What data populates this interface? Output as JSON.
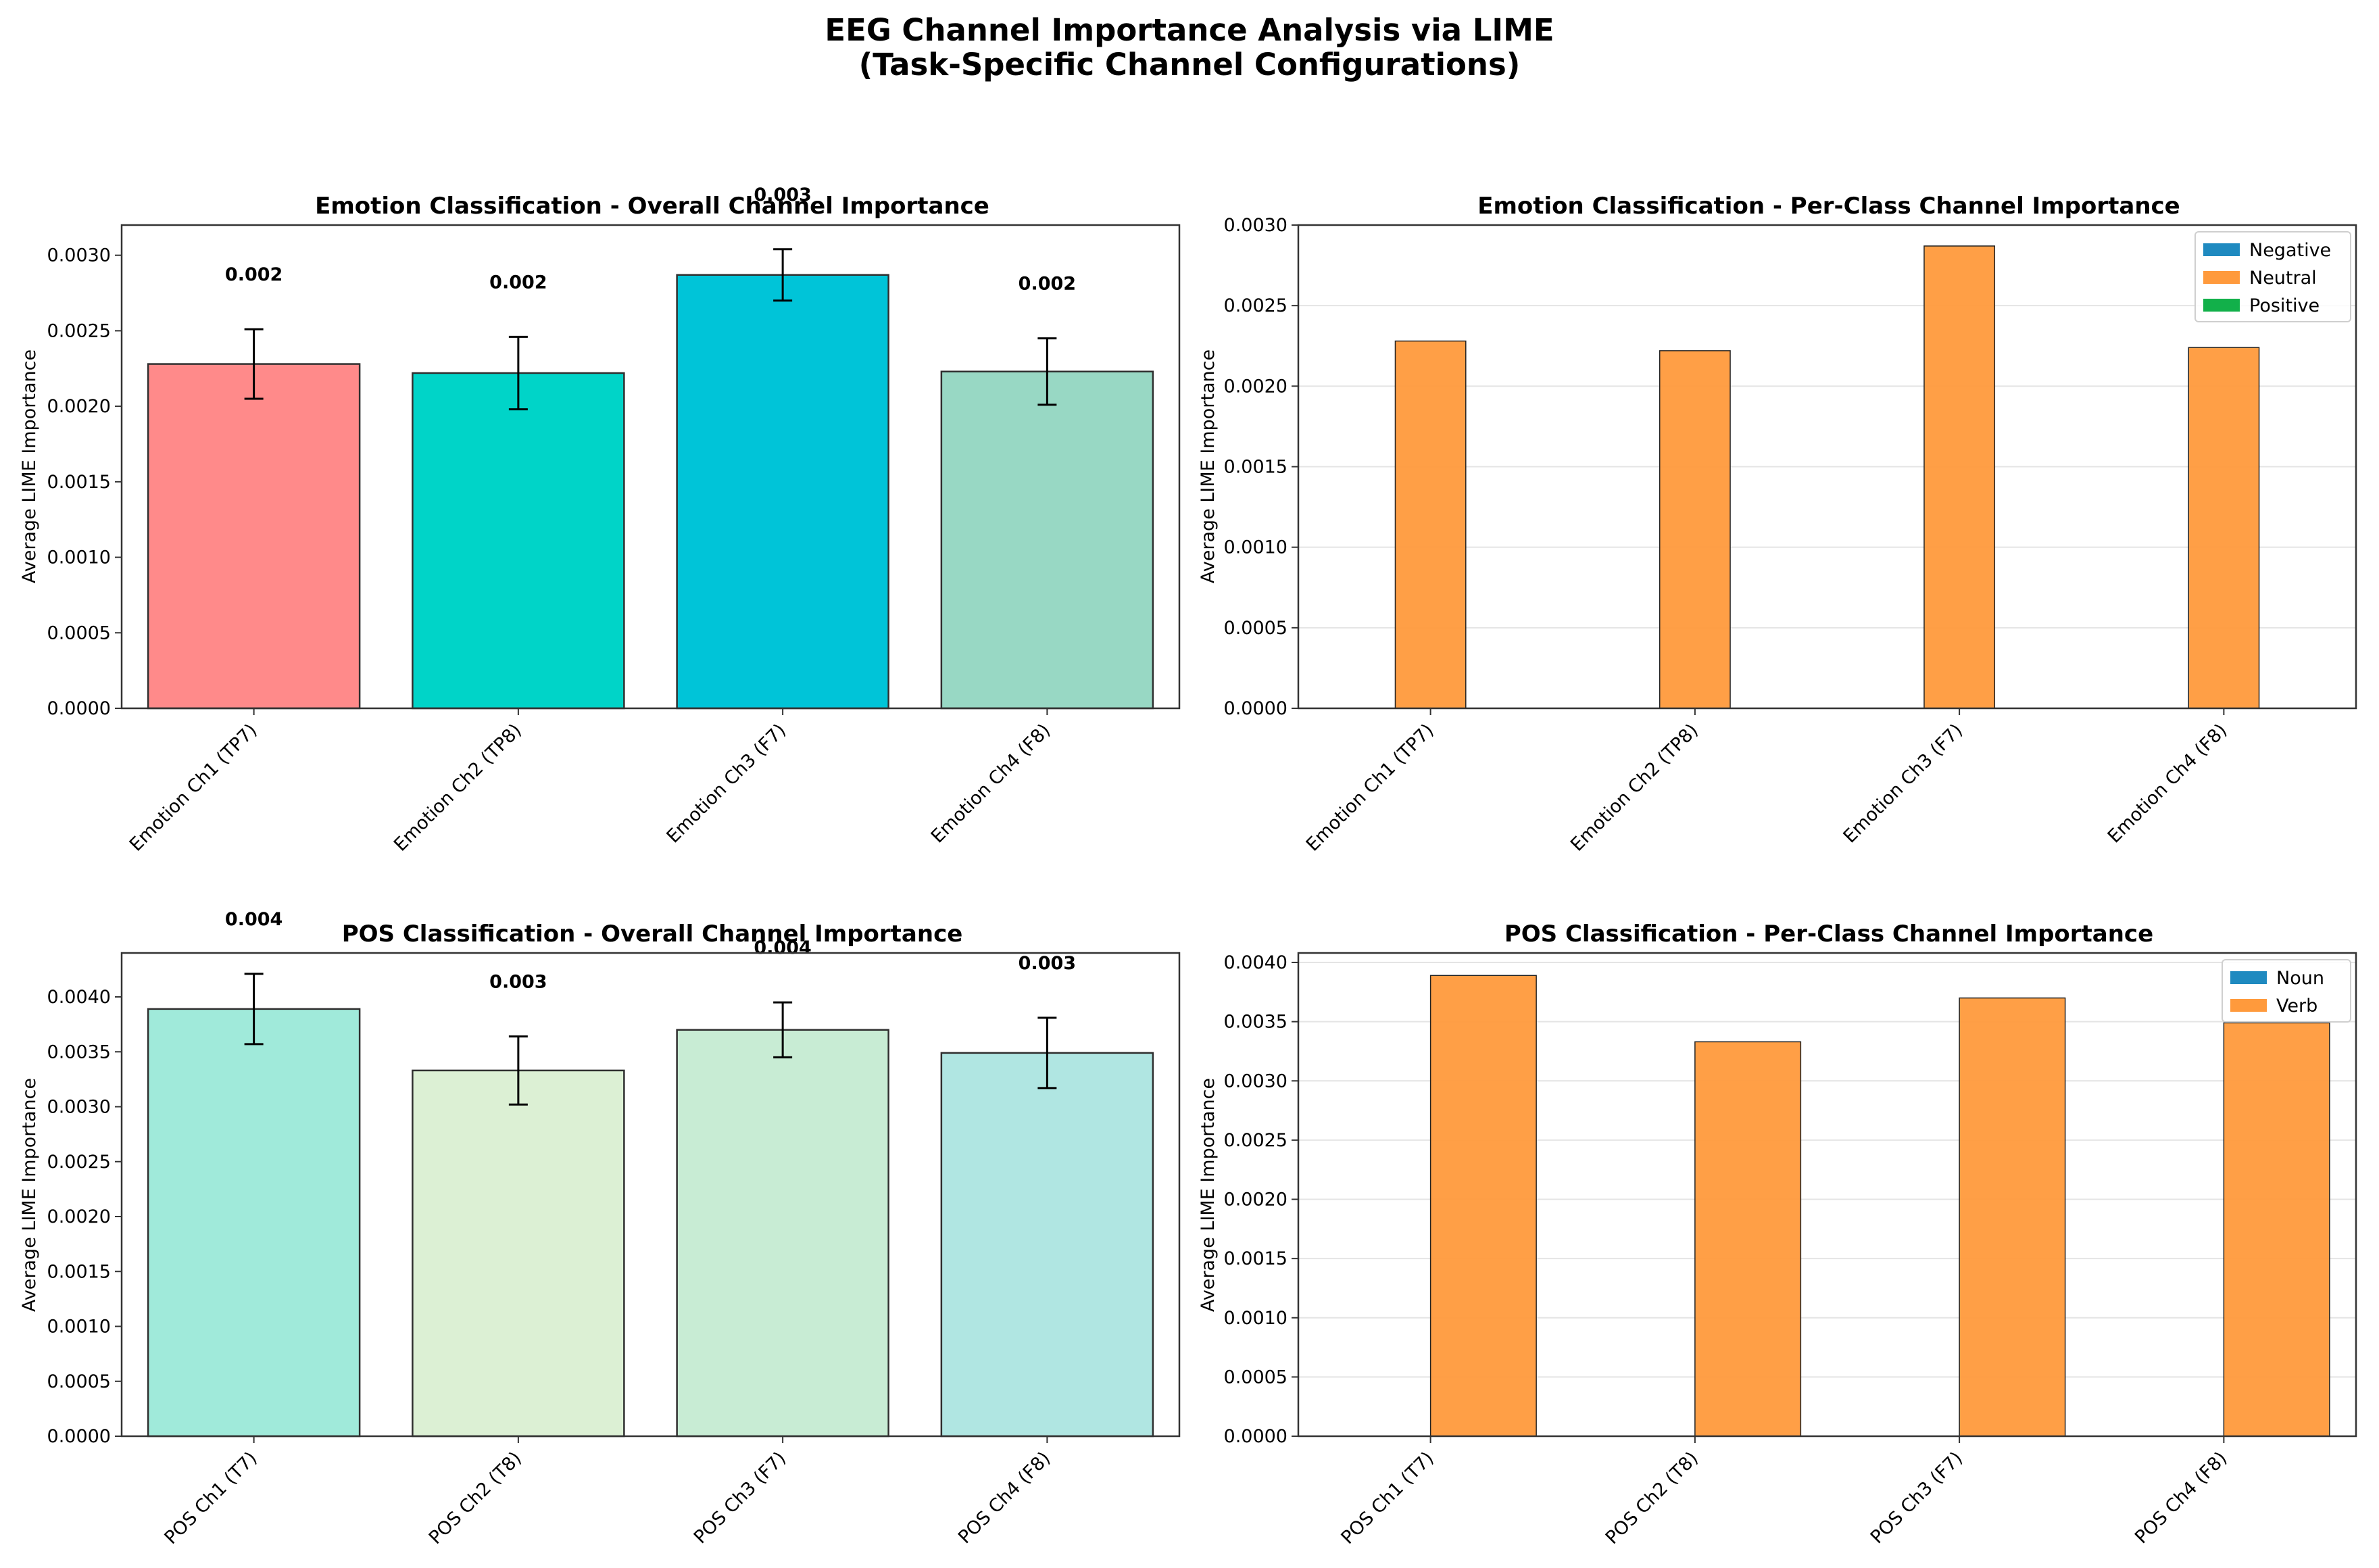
{
  "figure": {
    "title_line1": "EEG Channel Importance Analysis via LIME",
    "title_line2": "(Task-Specific Channel Configurations)"
  },
  "chart_data": [
    {
      "id": "emotion-overall",
      "type": "bar",
      "title": "Emotion Classification - Overall Channel Importance",
      "xlabel": "",
      "ylabel": "Average LIME Importance",
      "categories": [
        "Emotion Ch1 (TP7)",
        "Emotion Ch2 (TP8)",
        "Emotion Ch3 (F7)",
        "Emotion Ch4 (F8)"
      ],
      "values": [
        0.00228,
        0.00222,
        0.00287,
        0.00223
      ],
      "errors": [
        0.00023,
        0.00024,
        0.00017,
        0.00022
      ],
      "data_labels": [
        "0.002",
        "0.002",
        "0.003",
        "0.002"
      ],
      "colors": [
        "#ff8a8a",
        "#00d4c8",
        "#00c4d8",
        "#98d8c4"
      ],
      "ylim": [
        0,
        0.0032
      ],
      "yticks": [
        0,
        0.0005,
        0.001,
        0.0015,
        0.002,
        0.0025,
        0.003
      ],
      "ytick_labels": [
        "0.0000",
        "0.0005",
        "0.0010",
        "0.0015",
        "0.0020",
        "0.0025",
        "0.0030"
      ],
      "grid": false
    },
    {
      "id": "emotion-perclass",
      "type": "bar",
      "title": "Emotion Classification - Per-Class Channel Importance",
      "xlabel": "",
      "ylabel": "Average LIME Importance",
      "categories": [
        "Emotion Ch1 (TP7)",
        "Emotion Ch2 (TP8)",
        "Emotion Ch3 (F7)",
        "Emotion Ch4 (F8)"
      ],
      "series": [
        {
          "name": "Negative",
          "color": "#1f8ac0",
          "values": [
            0,
            0,
            0,
            0
          ]
        },
        {
          "name": "Neutral",
          "color": "#ff9a3c",
          "values": [
            0.00228,
            0.00222,
            0.00287,
            0.00224
          ]
        },
        {
          "name": "Positive",
          "color": "#12b04a",
          "values": [
            0,
            0,
            0,
            0
          ]
        }
      ],
      "ylim": [
        0,
        0.003
      ],
      "yticks": [
        0,
        0.0005,
        0.001,
        0.0015,
        0.002,
        0.0025,
        0.003
      ],
      "ytick_labels": [
        "0.0000",
        "0.0005",
        "0.0010",
        "0.0015",
        "0.0020",
        "0.0025",
        "0.0030"
      ],
      "legend": "top-right",
      "grid": true
    },
    {
      "id": "pos-overall",
      "type": "bar",
      "title": "POS Classification - Overall Channel Importance",
      "xlabel": "",
      "ylabel": "Average LIME Importance",
      "categories": [
        "POS Ch1 (T7)",
        "POS Ch2 (T8)",
        "POS Ch3 (F7)",
        "POS Ch4 (F8)"
      ],
      "values": [
        0.00389,
        0.00333,
        0.0037,
        0.00349
      ],
      "errors": [
        0.00032,
        0.00031,
        0.00025,
        0.00032
      ],
      "data_labels": [
        "0.004",
        "0.003",
        "0.004",
        "0.003"
      ],
      "colors": [
        "#a0eada",
        "#dcf0d4",
        "#c8ecd4",
        "#b0e6e2"
      ],
      "ylim": [
        0,
        0.0044
      ],
      "yticks": [
        0,
        0.0005,
        0.001,
        0.0015,
        0.002,
        0.0025,
        0.003,
        0.0035,
        0.004
      ],
      "ytick_labels": [
        "0.0000",
        "0.0005",
        "0.0010",
        "0.0015",
        "0.0020",
        "0.0025",
        "0.0030",
        "0.0035",
        "0.0040"
      ],
      "grid": false
    },
    {
      "id": "pos-perclass",
      "type": "bar",
      "title": "POS Classification - Per-Class Channel Importance",
      "xlabel": "",
      "ylabel": "Average LIME Importance",
      "categories": [
        "POS Ch1 (T7)",
        "POS Ch2 (T8)",
        "POS Ch3 (F7)",
        "POS Ch4 (F8)"
      ],
      "series": [
        {
          "name": "Noun",
          "color": "#1f8ac0",
          "values": [
            0,
            0,
            0,
            0
          ]
        },
        {
          "name": "Verb",
          "color": "#ff9a3c",
          "values": [
            0.00389,
            0.00333,
            0.0037,
            0.00349
          ]
        }
      ],
      "ylim": [
        0,
        0.00408
      ],
      "yticks": [
        0,
        0.0005,
        0.001,
        0.0015,
        0.002,
        0.0025,
        0.003,
        0.0035,
        0.004
      ],
      "ytick_labels": [
        "0.0000",
        "0.0005",
        "0.0010",
        "0.0015",
        "0.0020",
        "0.0025",
        "0.0030",
        "0.0035",
        "0.0040"
      ],
      "legend": "top-right",
      "grid": true
    }
  ]
}
